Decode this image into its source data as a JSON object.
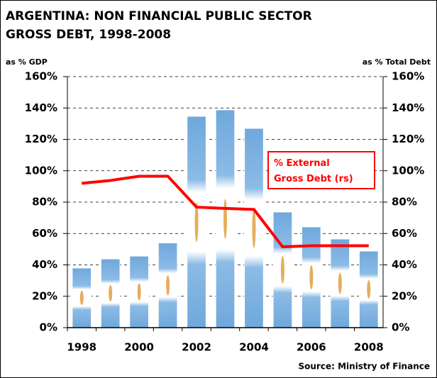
{
  "chart_data": {
    "type": "bar",
    "title": [
      "ARGENTINA: NON FINANCIAL PUBLIC SECTOR",
      "GROSS DEBT, 1998-2008"
    ],
    "y_label": "as % GDP",
    "y2_label": "as % Total Debt",
    "source": "Source: Ministry of Finance",
    "categories": [
      "1998",
      null,
      "2000",
      null,
      "2002",
      null,
      "2004",
      null,
      "2006",
      null,
      "2008"
    ],
    "series": [
      {
        "type": "bar",
        "color": "#6fa8dc",
        "values": [
          38,
          43.8,
          45.6,
          54,
          134.7,
          138.8,
          127,
          73.7,
          64.2,
          56.5,
          48.8
        ]
      },
      {
        "type": "line",
        "name": "% External Gross Debt (rs)",
        "color": "#ff0000",
        "axis": "y2",
        "values": [
          92,
          93.8,
          96.5,
          96.5,
          76.8,
          76,
          75.3,
          51.5,
          52.2,
          52.2,
          52.2
        ]
      }
    ],
    "ylim": [
      0,
      160
    ],
    "yticks": [
      {
        "value": 0,
        "label": "0%"
      },
      {
        "value": 20,
        "label": "20%"
      },
      {
        "value": 40,
        "label": "40%"
      },
      {
        "value": 60,
        "label": "60%"
      },
      {
        "value": 80,
        "label": "80%"
      },
      {
        "value": 100,
        "label": "100%"
      },
      {
        "value": 120,
        "label": "120%"
      },
      {
        "value": 140,
        "label": "140%"
      },
      {
        "value": 160,
        "label": "160%"
      }
    ],
    "y2lim": [
      0,
      160
    ],
    "y2ticks": [
      {
        "value": 0,
        "label": "0%"
      },
      {
        "value": 20,
        "label": "20%"
      },
      {
        "value": 40,
        "label": "40%"
      },
      {
        "value": 60,
        "label": "60%"
      },
      {
        "value": 80,
        "label": "80%"
      },
      {
        "value": 100,
        "label": "100%"
      },
      {
        "value": 120,
        "label": "120%"
      },
      {
        "value": 140,
        "label": "140%"
      },
      {
        "value": 160,
        "label": "160%"
      }
    ],
    "grid": true
  }
}
